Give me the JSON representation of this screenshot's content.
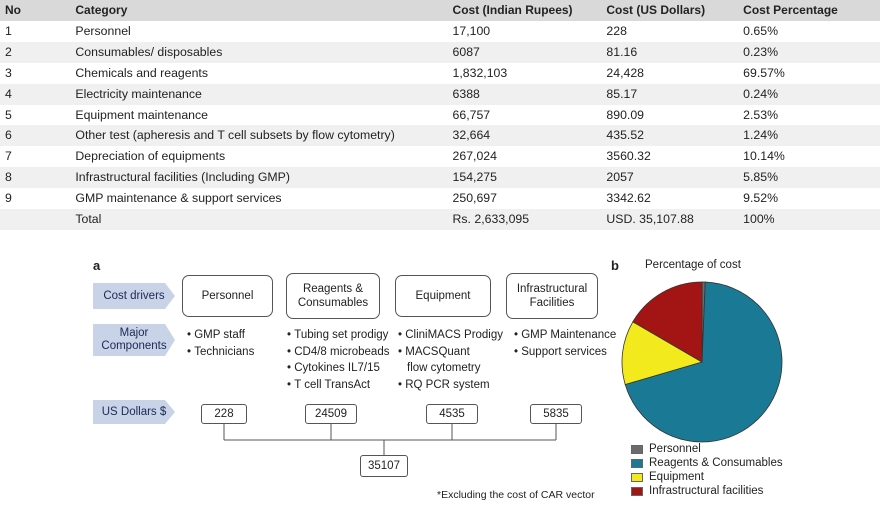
{
  "table": {
    "headers": [
      "No",
      "Category",
      "Cost (Indian Rupees)",
      "Cost (US Dollars)",
      "Cost Percentage"
    ],
    "rows": [
      [
        "1",
        "Personnel",
        "17,100",
        "228",
        "0.65%"
      ],
      [
        "2",
        "Consumables/ disposables",
        "6087",
        "81.16",
        "0.23%"
      ],
      [
        "3",
        "Chemicals and reagents",
        "1,832,103",
        "24,428",
        "69.57%"
      ],
      [
        "4",
        "Electricity maintenance",
        "6388",
        "85.17",
        "0.24%"
      ],
      [
        "5",
        "Equipment maintenance",
        "66,757",
        "890.09",
        "2.53%"
      ],
      [
        "6",
        "Other test (apheresis and T cell subsets by flow cytometry)",
        "32,664",
        "435.52",
        "1.24%"
      ],
      [
        "7",
        "Depreciation of equipments",
        "267,024",
        "3560.32",
        "10.14%"
      ],
      [
        "8",
        "Infrastructural facilities (Including GMP)",
        "154,275",
        "2057",
        "5.85%"
      ],
      [
        "9",
        "GMP maintenance & support services",
        "250,697",
        "3342.62",
        "9.52%"
      ],
      [
        "",
        "Total",
        "Rs. 2,633,095",
        "USD. 35,107.88",
        "100%"
      ]
    ]
  },
  "panel_a": {
    "letter": "a",
    "row_labels": {
      "drivers": "Cost drivers",
      "components": [
        "Major",
        "Components"
      ],
      "dollars": "US Dollars $"
    },
    "drivers": [
      [
        "Personnel"
      ],
      [
        "Reagents &",
        "Consumables"
      ],
      [
        "Equipment"
      ],
      [
        "Infrastructural",
        "Facilities"
      ]
    ],
    "components": [
      [
        "GMP staff",
        "Technicians"
      ],
      [
        "Tubing set prodigy",
        "CD4/8 microbeads",
        "Cytokines IL7/15",
        "T cell TransAct"
      ],
      [
        "CliniMACS Prodigy",
        "MACSQuant",
        "flow cytometry",
        "RQ PCR system"
      ],
      [
        "GMP Maintenance",
        "Support services"
      ]
    ],
    "dollars": [
      "228",
      "24509",
      "4535",
      "5835"
    ],
    "total": "35107",
    "note": "*Excluding the cost of CAR vector"
  },
  "panel_b": {
    "letter": "b",
    "title": "Percentage of cost"
  },
  "chart_data": {
    "type": "pie",
    "title": "Percentage of cost",
    "labels": [
      "Personnel",
      "Reagents & Consumables",
      "Equipment",
      "Infrastructural facilities"
    ],
    "values": [
      228,
      24509,
      4535,
      5835
    ],
    "colors": [
      "#6b6b6b",
      "#1a7a96",
      "#f2ea1c",
      "#a31414"
    ],
    "legend_position": "bottom"
  }
}
